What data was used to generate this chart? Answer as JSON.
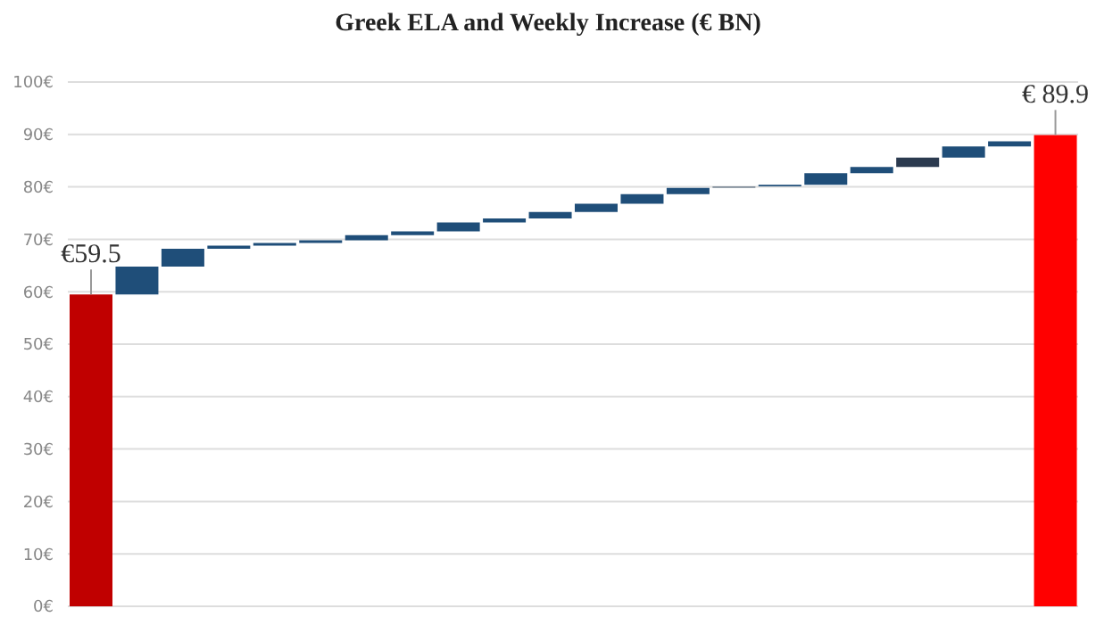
{
  "chart_data": {
    "type": "bar",
    "title": "Greek ELA and Weekly Increase (€ BN)",
    "categories": [
      null,
      null,
      null,
      null,
      null,
      null,
      null,
      null,
      null,
      null,
      null,
      null,
      null,
      null,
      null,
      null,
      null,
      null,
      null,
      null,
      null,
      null
    ],
    "base": [
      0,
      59.5,
      64.8,
      68.2,
      68.8,
      69.3,
      69.8,
      70.8,
      71.5,
      73.2,
      74.0,
      75.2,
      76.8,
      78.6,
      79.8,
      80.1,
      80.4,
      82.6,
      83.8,
      85.6,
      87.7,
      0
    ],
    "values": [
      59.5,
      5.3,
      3.4,
      0.6,
      0.5,
      0.5,
      1.0,
      0.7,
      1.7,
      0.8,
      1.2,
      1.6,
      1.8,
      1.2,
      0.3,
      0.3,
      2.2,
      1.2,
      1.8,
      2.1,
      1.0,
      89.9
    ],
    "colors": [
      "#c00000",
      "#1f4e79",
      "#1f4e79",
      "#1f4e79",
      "#1f4e79",
      "#1f4e79",
      "#1f4e79",
      "#1f4e79",
      "#1f4e79",
      "#1f4e79",
      "#1f4e79",
      "#1f4e79",
      "#1f4e79",
      "#1f4e79",
      "#7f8c99",
      "#1f4e79",
      "#1f4e79",
      "#1f4e79",
      "#2b3a4f",
      "#1f4e79",
      "#1f4e79",
      "#ff0000"
    ],
    "value_labels": [
      "€59.5",
      null,
      null,
      null,
      null,
      null,
      null,
      null,
      null,
      null,
      null,
      null,
      null,
      null,
      null,
      null,
      null,
      null,
      null,
      null,
      null,
      "€ 89.9"
    ],
    "ylim": [
      0,
      100
    ],
    "yticks": [
      {
        "value": 0,
        "label": "0€"
      },
      {
        "value": 10,
        "label": "10€"
      },
      {
        "value": 20,
        "label": "20€"
      },
      {
        "value": 30,
        "label": "30€"
      },
      {
        "value": 40,
        "label": "40€"
      },
      {
        "value": 50,
        "label": "50€"
      },
      {
        "value": 60,
        "label": "60€"
      },
      {
        "value": 70,
        "label": "70€"
      },
      {
        "value": 80,
        "label": "80€"
      },
      {
        "value": 90,
        "label": "90€"
      },
      {
        "value": 100,
        "label": "100€"
      }
    ],
    "grid": "y",
    "tick_labels": "y"
  }
}
